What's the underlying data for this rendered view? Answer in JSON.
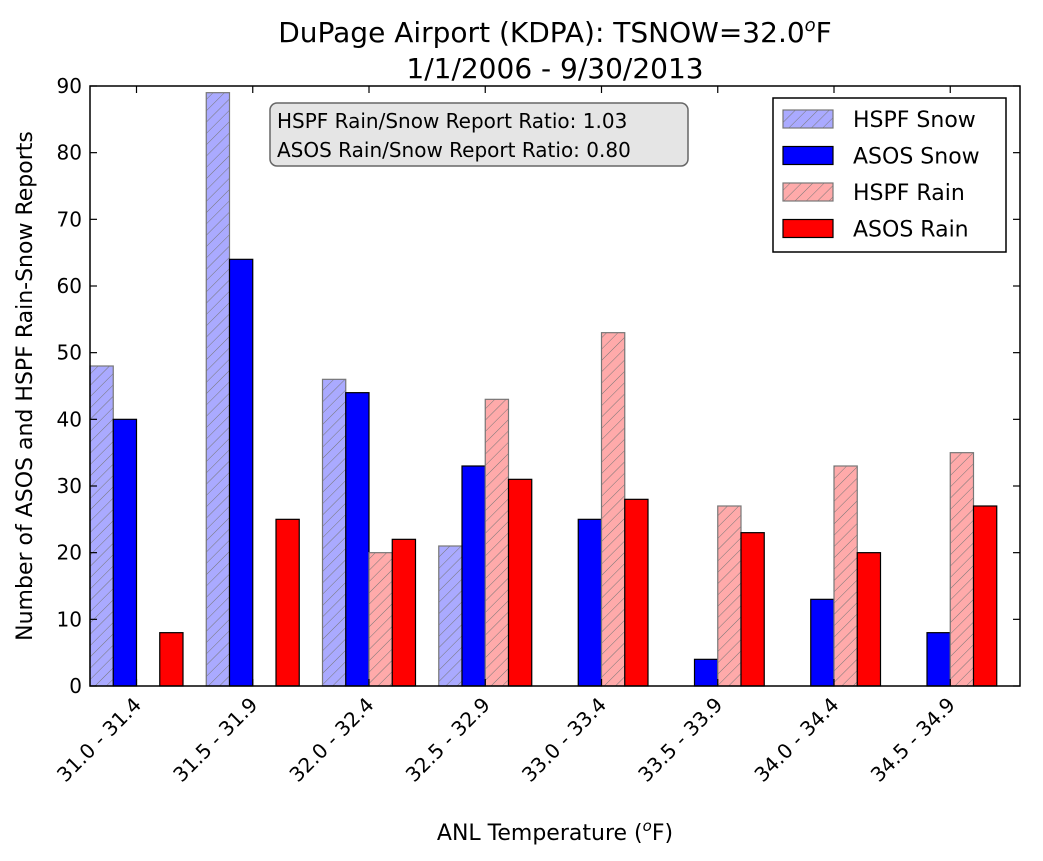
{
  "chart_data": {
    "type": "bar",
    "title_line1": "DuPage Airport (KDPA): TSNOW=32.0",
    "title_unit_sup": "o",
    "title_unit": "F",
    "title_line2": "1/1/2006 - 9/30/2013",
    "xlabel_main": "ANL Temperature (",
    "xlabel_sup": "o",
    "xlabel_end": "F)",
    "ylabel": "Number of ASOS and HSPF Rain-Snow Reports",
    "ylim": [
      0,
      90
    ],
    "yticks": [
      "0",
      "10",
      "20",
      "30",
      "40",
      "50",
      "60",
      "70",
      "80",
      "90"
    ],
    "grid": false,
    "legend_position": "top-right",
    "categories": [
      "31.0 - 31.4",
      "31.5 - 31.9",
      "32.0 - 32.4",
      "32.5 - 32.9",
      "33.0 - 33.4",
      "33.5 - 33.9",
      "34.0 - 34.4",
      "34.5 - 34.9"
    ],
    "series": [
      {
        "name": "HSPF Snow",
        "values": [
          48,
          89,
          46,
          21,
          0,
          0,
          0,
          0
        ],
        "color": "#aaaaff",
        "edge": "#777777",
        "hatch": true
      },
      {
        "name": "ASOS Snow",
        "values": [
          40,
          64,
          44,
          33,
          25,
          4,
          13,
          8
        ],
        "color": "#0000ff",
        "edge": "#000000",
        "hatch": false
      },
      {
        "name": "HSPF Rain",
        "values": [
          0,
          0,
          20,
          43,
          53,
          27,
          33,
          35
        ],
        "color": "#ffaaaa",
        "edge": "#777777",
        "hatch": true
      },
      {
        "name": "ASOS Rain",
        "values": [
          8,
          25,
          22,
          31,
          28,
          23,
          20,
          27
        ],
        "color": "#ff0000",
        "edge": "#000000",
        "hatch": false
      }
    ],
    "annotation": [
      "HSPF Rain/Snow Report Ratio: 1.03",
      "ASOS Rain/Snow Report Ratio: 0.80"
    ]
  }
}
